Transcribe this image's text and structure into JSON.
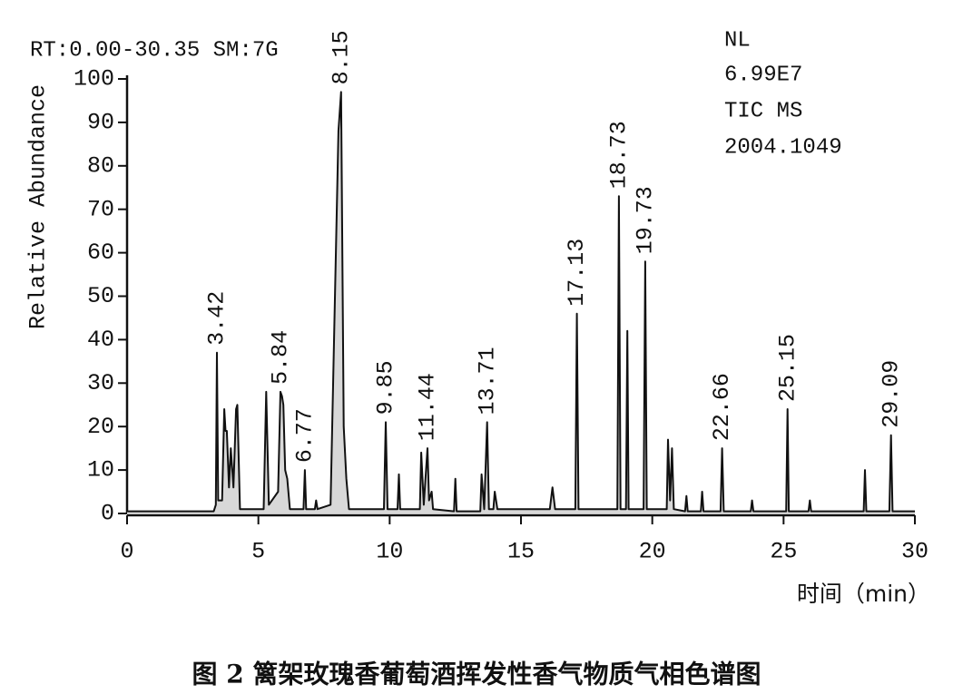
{
  "chart_data": {
    "type": "line",
    "header_left": "RT:0.00-30.35 SM:7G",
    "header_right": [
      "NL",
      "6.99E7",
      "TIC  MS",
      "2004.1049"
    ],
    "ylabel": "Relative Abundance",
    "xlabel": "时间（min）",
    "caption": "图 2  篱架玫瑰香葡萄酒挥发性香气物质气相色谱图",
    "xlim": [
      0,
      30
    ],
    "xticks": [
      0,
      5,
      10,
      15,
      20,
      25,
      30
    ],
    "ylim": [
      0,
      100
    ],
    "yticks": [
      0,
      10,
      20,
      30,
      40,
      50,
      60,
      70,
      80,
      90,
      100
    ],
    "color": "#111111",
    "fill": "#d8d8d8",
    "x": [
      0,
      3.3,
      3.38,
      3.42,
      3.47,
      3.62,
      3.7,
      3.75,
      3.8,
      3.88,
      3.95,
      4.05,
      4.15,
      4.2,
      4.3,
      5.2,
      5.3,
      5.4,
      5.75,
      5.84,
      5.9,
      5.95,
      6.02,
      6.1,
      6.2,
      6.72,
      6.77,
      6.82,
      7.15,
      7.2,
      7.25,
      7.75,
      8.05,
      8.15,
      8.25,
      8.35,
      8.45,
      9.78,
      9.85,
      9.92,
      10.3,
      10.35,
      10.4,
      11.15,
      11.2,
      11.3,
      11.44,
      11.5,
      11.6,
      11.65,
      12.45,
      12.5,
      12.55,
      13.45,
      13.5,
      13.6,
      13.71,
      13.78,
      13.95,
      14.0,
      14.1,
      16.1,
      16.2,
      16.3,
      17.07,
      17.13,
      17.19,
      18.67,
      18.73,
      18.79,
      19.0,
      19.05,
      19.1,
      19.67,
      19.73,
      19.79,
      20.55,
      20.6,
      20.68,
      20.75,
      20.82,
      21.25,
      21.3,
      21.35,
      21.85,
      21.9,
      21.95,
      22.6,
      22.66,
      22.72,
      23.75,
      23.8,
      23.85,
      25.1,
      25.15,
      25.2,
      25.95,
      26.0,
      26.05,
      28.05,
      28.1,
      28.15,
      29.03,
      29.09,
      29.15,
      30
    ],
    "values": [
      0.5,
      0.5,
      2,
      37,
      3,
      3,
      24,
      19,
      19,
      6,
      15,
      6,
      24,
      25,
      1,
      1,
      28,
      2,
      5,
      28,
      27,
      25,
      10,
      8,
      1,
      1,
      10,
      1,
      1,
      3,
      1,
      2,
      88,
      97,
      20,
      8,
      1,
      1,
      21,
      1,
      1,
      9,
      1,
      1,
      14,
      2,
      15,
      3,
      5,
      1,
      0.5,
      8,
      0.5,
      0.5,
      9,
      1,
      21,
      1,
      1,
      5,
      1,
      1,
      6,
      1,
      1,
      46,
      1,
      1,
      73,
      1,
      1,
      42,
      1,
      1,
      58,
      1,
      1,
      17,
      3,
      15,
      1,
      0.5,
      4,
      0.5,
      0.5,
      5,
      0.5,
      0.5,
      15,
      0.5,
      0.5,
      3,
      0.5,
      0.5,
      24,
      0.5,
      0.5,
      3,
      0.5,
      0.5,
      10,
      0.5,
      0.5,
      18,
      0.5,
      0.5
    ],
    "annotations": [
      {
        "x": 3.42,
        "y": 37
      },
      {
        "x": 5.84,
        "y": 28
      },
      {
        "x": 6.77,
        "y": 10
      },
      {
        "x": 8.15,
        "y": 97
      },
      {
        "x": 9.85,
        "y": 21
      },
      {
        "x": 11.44,
        "y": 15
      },
      {
        "x": 13.71,
        "y": 21
      },
      {
        "x": 17.13,
        "y": 46
      },
      {
        "x": 18.73,
        "y": 73
      },
      {
        "x": 19.73,
        "y": 58
      },
      {
        "x": 22.66,
        "y": 15
      },
      {
        "x": 25.15,
        "y": 24
      },
      {
        "x": 29.09,
        "y": 18
      }
    ]
  }
}
